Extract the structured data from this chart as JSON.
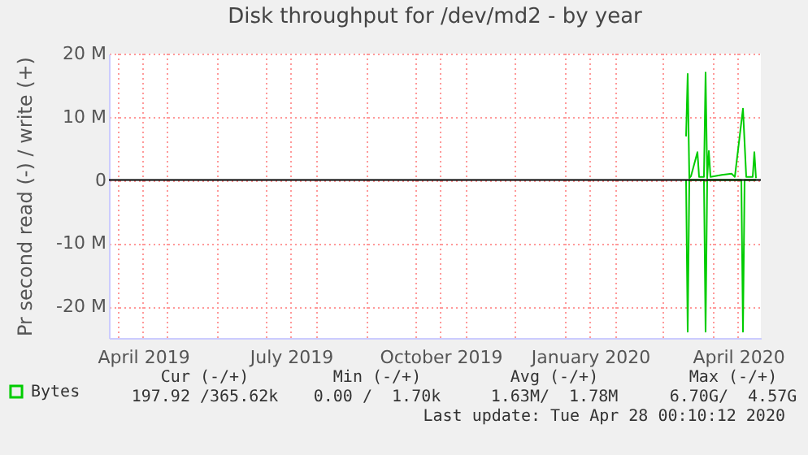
{
  "chart_data": {
    "type": "line",
    "title": "Disk throughput for /dev/md2 - by year",
    "ylabel": "Pr second read (-) / write (+)",
    "xlim": [
      "2019-03-26",
      "2020-04-30"
    ],
    "xticks": [
      {
        "value": "2019-04-01",
        "label": null
      },
      {
        "value": "2019-04-16",
        "label": "April 2019"
      },
      {
        "value": "2019-05-01",
        "label": null
      },
      {
        "value": "2019-06-01",
        "label": null
      },
      {
        "value": "2019-07-01",
        "label": null
      },
      {
        "value": "2019-07-16",
        "label": "July 2019"
      },
      {
        "value": "2019-08-01",
        "label": null
      },
      {
        "value": "2019-09-01",
        "label": null
      },
      {
        "value": "2019-10-01",
        "label": null
      },
      {
        "value": "2019-10-16",
        "label": "October 2019"
      },
      {
        "value": "2019-11-01",
        "label": null
      },
      {
        "value": "2019-12-01",
        "label": null
      },
      {
        "value": "2020-01-01",
        "label": null
      },
      {
        "value": "2020-01-16",
        "label": "January 2020"
      },
      {
        "value": "2020-02-01",
        "label": null
      },
      {
        "value": "2020-03-01",
        "label": null
      },
      {
        "value": "2020-04-01",
        "label": null
      },
      {
        "value": "2020-04-16",
        "label": "April 2020"
      }
    ],
    "ylim": [
      -25,
      20
    ],
    "yticks": [
      {
        "value": -20,
        "label": "-20 M"
      },
      {
        "value": -10,
        "label": "-10 M"
      },
      {
        "value": 0,
        "label": "0"
      },
      {
        "value": 10,
        "label": "10 M"
      },
      {
        "value": 20,
        "label": "20 M"
      }
    ],
    "grid": true,
    "legend": "bottom left",
    "marker": "none",
    "line_style": "solid",
    "ref_lines": [
      {
        "axis": "y",
        "value": 0,
        "color": "#000000"
      }
    ],
    "series": [
      {
        "name": "Bytes",
        "color": "#00cc00",
        "x": [
          "2020-03-15",
          "2020-03-16",
          "2020-03-17",
          "2020-03-18",
          "2020-03-22",
          "2020-03-23",
          "2020-03-26",
          "2020-03-27",
          "2020-03-28",
          "2020-03-29",
          "2020-03-30",
          "2020-04-06",
          "2020-04-12",
          "2020-04-14",
          "2020-04-19",
          "2020-04-21",
          "2020-04-25",
          "2020-04-26",
          "2020-04-27"
        ],
        "values": [
          6.9,
          16.8,
          0.3,
          0.6,
          4.4,
          0.5,
          0.5,
          17,
          0.3,
          4.6,
          0.5,
          0.8,
          1.0,
          0.5,
          11.3,
          0.5,
          0.5,
          4.4,
          0.3
        ]
      },
      {
        "color": "#00cc00",
        "x": [
          "2020-03-15",
          "2020-03-16",
          "2020-03-17",
          "2020-03-26",
          "2020-03-27",
          "2020-03-28",
          "2020-04-18",
          "2020-04-19",
          "2020-04-20",
          "2020-04-27"
        ],
        "values": [
          0,
          -24,
          0,
          0,
          -24,
          0,
          0,
          -24,
          0,
          0
        ]
      }
    ],
    "annotations": [
      "Cur (-/+)",
      "Min (-/+)",
      "Avg (-/+)",
      "Max (-/+)",
      "197.92 /365.62k",
      "0.00 /  1.70k",
      "1.63M/  1.78M",
      "6.70G/  4.57G",
      "Last update: Tue Apr 28 00:10:12 2020"
    ]
  }
}
